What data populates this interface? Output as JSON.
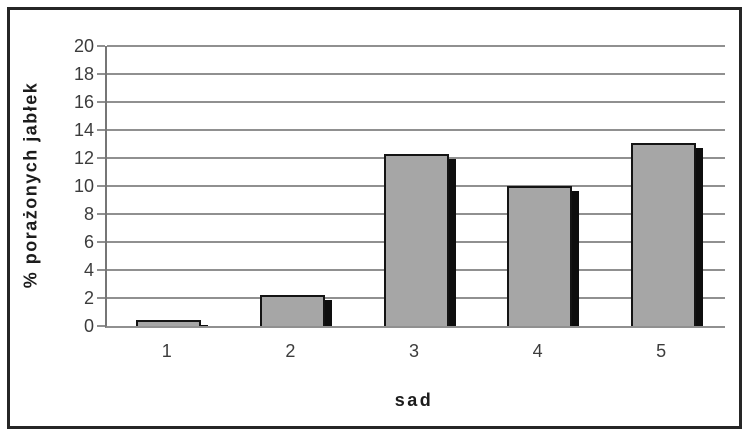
{
  "chart_data": {
    "type": "bar",
    "ylabel": "% porażonych jabłek",
    "xlabel": "sad",
    "categories": [
      "1",
      "2",
      "3",
      "4",
      "5"
    ],
    "values": [
      0.4,
      2.2,
      12.3,
      10,
      13.1
    ],
    "ylim": [
      0,
      20
    ],
    "yticks": [
      0,
      2,
      4,
      6,
      8,
      10,
      12,
      14,
      16,
      18,
      20
    ],
    "grid": true,
    "legend": "none",
    "colors": {
      "bar_fill": "#a6a6a6",
      "bar_border": "#141414",
      "bar_shadow": "#0e0e0e",
      "gridline": "#909090",
      "axis_line": "#767676",
      "tick_text": "#3c3c3c",
      "title_text": "#1c1c1c",
      "frame_border": "#262626",
      "background": "#ffffff"
    }
  }
}
